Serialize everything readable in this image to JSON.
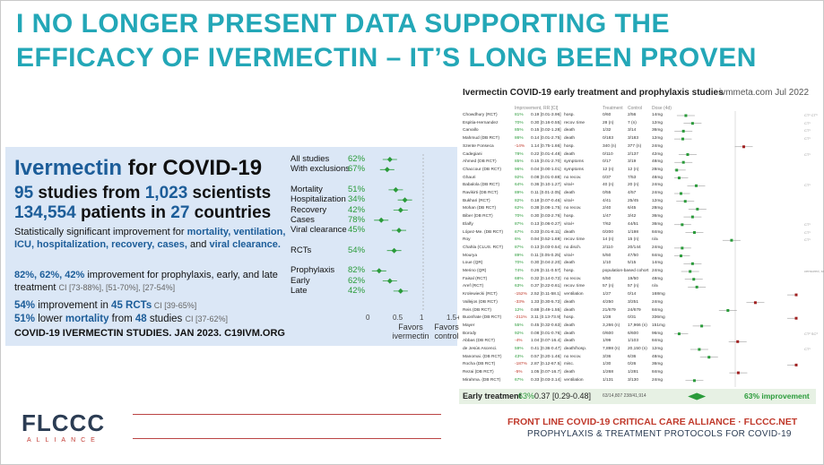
{
  "title": {
    "line1": "I NO LONGER PRESENT DATA SUPPORTING THE",
    "line2": "EFFICACY OF IVERMECTIN – IT’S LONG BEEN PROVEN"
  },
  "left": {
    "h1_a": "Ivermectin",
    "h1_b": " for COVID-19",
    "h2_a": "95",
    "h2_b": " studies from ",
    "h2_c": "1,023",
    "h2_d": " scientists",
    "h3_a": "134,554",
    "h3_b": " patients in ",
    "h3_c": "27",
    "h3_d": " countries",
    "sig_text": "Statistically significant improvement for",
    "sig_bold": "mortality, ventilation, ICU, hospitalization, recovery, cases,",
    "sig_and": " and ",
    "sig_end": "viral clearance.",
    "imp_pcts": "82%, 62%, 42%",
    "imp_text": " improvement for prophylaxis, early, and late treatment ",
    "imp_ci": "CI [73-88%], [51-70%], [27-54%]",
    "rct_a": "54%",
    "rct_b": " improvement in ",
    "rct_c": "45 RCTs",
    "rct_ci": " CI [39-65%]",
    "mort_a": "51%",
    "mort_b": " lower ",
    "mort_c": "mortality",
    "mort_d": " from ",
    "mort_e": "48",
    "mort_f": " studies ",
    "mort_ci": "CI [37-62%]",
    "note": "COVID-19 IVERMECTIN STUDIES. JAN 2023. C19IVM.ORG"
  },
  "mini": {
    "rows": [
      {
        "label": "All studies",
        "pct": "62%",
        "v": 0.38
      },
      {
        "label": "With exclusions",
        "pct": "67%",
        "v": 0.33
      },
      {
        "label": "",
        "pct": "",
        "v": null
      },
      {
        "label": "Mortality",
        "pct": "51%",
        "v": 0.49
      },
      {
        "label": "Hospitalization",
        "pct": "34%",
        "v": 0.66
      },
      {
        "label": "Recovery",
        "pct": "42%",
        "v": 0.58
      },
      {
        "label": "Cases",
        "pct": "78%",
        "v": 0.22
      },
      {
        "label": "Viral clearance",
        "pct": "45%",
        "v": 0.55
      },
      {
        "label": "",
        "pct": "",
        "v": null
      },
      {
        "label": "RCTs",
        "pct": "54%",
        "v": 0.46
      },
      {
        "label": "",
        "pct": "",
        "v": null
      },
      {
        "label": "Prophylaxis",
        "pct": "82%",
        "v": 0.18
      },
      {
        "label": "Early",
        "pct": "62%",
        "v": 0.38
      },
      {
        "label": "Late",
        "pct": "42%",
        "v": 0.58
      }
    ],
    "ticks": [
      "0",
      "0.5",
      "1",
      "1.5+"
    ],
    "fav_a": "Favors ivermectin",
    "fav_b": "Favors control"
  },
  "right": {
    "title": "Ivermectin COVID-19 early treatment and prophylaxis studies",
    "site": "ivmmeta.com Jul 2022",
    "hdr_imp": "Improvement, RR [CI]",
    "hdr_tr": "Treatment",
    "hdr_ctl": "Control",
    "hdr_dose": "Dose (4d)",
    "rows": [
      [
        "Chowdhury (RCT)",
        "81%",
        "0.19 [0.01-3.96]",
        "hosp.",
        "0/60",
        "2/56",
        "14mg",
        "CT¹ CT³"
      ],
      [
        "Espitia-Hernandez",
        "70%",
        "0.30 [0.16-0.55]",
        "recov. time",
        "28 (n)",
        "7 (n)",
        "12mg",
        "CT¹"
      ],
      [
        "Carvallo",
        "85%",
        "0.15 [0.02-1.28]",
        "death",
        "1/32",
        "3/14",
        "36mg",
        "CT¹"
      ],
      [
        "Mahmud (DB RCT)",
        "86%",
        "0.14 [0.01-2.75]",
        "death",
        "0/183",
        "3/183",
        "12mg",
        "CT¹"
      ],
      [
        "Szente Fonseca",
        "-14%",
        "1.14 [0.75-1.66]",
        "hosp.",
        "340 (n)",
        "377 (n)",
        "24mg",
        ""
      ],
      [
        "Cadegiani",
        "78%",
        "0.22 [0.01-4.48]",
        "death",
        "0/110",
        "2/137",
        "42mg",
        "CT¹"
      ],
      [
        "Ahmed (DB RCT)",
        "85%",
        "0.15 [0.01-2.70]",
        "symptoms",
        "0/17",
        "3/19",
        "48mg",
        ""
      ],
      [
        "Chaccour (DB RCT)",
        "96%",
        "0.04 [0.00-1.01]",
        "symptoms",
        "12 (n)",
        "12 (n)",
        "28mg",
        ""
      ],
      [
        "Ghauri",
        "92%",
        "0.08 [0.01-0.88]",
        "no recov.",
        "0/37",
        "7/53",
        "48mg",
        ""
      ],
      [
        "Babalola (DB RCT)",
        "64%",
        "0.36 [0.10-1.27]",
        "viral+",
        "40 (n)",
        "20 (n)",
        "24mg",
        "CT¹"
      ],
      [
        "Ravikirti (DB RCT)",
        "89%",
        "0.11 [0.01-2.05]",
        "death",
        "0/55",
        "4/57",
        "24mg",
        ""
      ],
      [
        "Bukhari (RCT)",
        "82%",
        "0.18 [0.07-0.46]",
        "viral+",
        "4/41",
        "25/45",
        "12mg",
        ""
      ],
      [
        "Mohan (DB RCT)",
        "62%",
        "0.38 [0.08-1.75]",
        "no recov.",
        "2/40",
        "6/45",
        "28mg",
        ""
      ],
      [
        "Biber (DB RCT)",
        "70%",
        "0.30 [0.03-2.76]",
        "hosp.",
        "1/47",
        "3/42",
        "36mg",
        ""
      ],
      [
        "Elalfy",
        "87%",
        "0.13 [0.06-0.27]",
        "viral+",
        "7/62",
        "44/51",
        "36mg",
        "CT¹"
      ],
      [
        "López-Me. (DB RCT)",
        "67%",
        "0.33 [0.01-8.11]",
        "death",
        "0/200",
        "1/198",
        "84mg",
        "CT¹"
      ],
      [
        "Roy",
        "6%",
        "0.94 [0.52-1.69]",
        "recov. time",
        "14 (n)",
        "15 (n)",
        "n/a",
        "CT¹"
      ],
      [
        "Chahla (CLUS. RCT)",
        "87%",
        "0.13 [0.03-0.54]",
        "no disch.",
        "2/110",
        "20/144",
        "24mg",
        ""
      ],
      [
        "Mourya",
        "89%",
        "0.11 [0.05-0.25]",
        "viral+",
        "5/50",
        "47/50",
        "84mg",
        ""
      ],
      [
        "Loue (QR)",
        "70%",
        "0.30 [0.04-2.20]",
        "death",
        "1/10",
        "5/15",
        "14mg",
        ""
      ],
      [
        "Merino (QR)",
        "74%",
        "0.26 [0.11-0.57]",
        "hosp.",
        "population-based cohort",
        "",
        "24mg",
        "censored, see notes CS²"
      ],
      [
        "Faisal (RCT)",
        "68%",
        "0.32 [0.14-0.72]",
        "no recov.",
        "6/50",
        "19/50",
        "48mg",
        ""
      ],
      [
        "Aref (RCT)",
        "63%",
        "0.37 [0.22-0.61]",
        "recov. time",
        "57 (n)",
        "57 (n)",
        "n/a",
        ""
      ],
      [
        "Krolewiecki (RCT)",
        "-152%",
        "2.52 [0.11-58.1]",
        "ventilation",
        "1/27",
        "0/14",
        "168mg",
        ""
      ],
      [
        "Vallejos (DB RCT)",
        "-33%",
        "1.33 [0.30-5.72]",
        "death",
        "4/250",
        "3/251",
        "24mg",
        ""
      ],
      [
        "Reis (DB RCT)",
        "12%",
        "0.88 [0.49-1.55]",
        "death",
        "21/679",
        "24/679",
        "84mg",
        ""
      ],
      [
        "Buonfrate (DB RCT)",
        "-211%",
        "3.11 [0.13-73.9]",
        "hosp.",
        "1/28",
        "0/31",
        "336mg",
        ""
      ],
      [
        "Mayer",
        "55%",
        "0.45 [0.32-0.63]",
        "death",
        "3,266 (n)",
        "17,966 (n)",
        "151mg",
        ""
      ],
      [
        "Borody",
        "92%",
        "0.08 [0.01-0.76]",
        "death",
        "0/600",
        "6/600",
        "96mg",
        "CT² SC³"
      ],
      [
        "Abbas (DB RCT)",
        "-4%",
        "1.04 [0.07-16.4]",
        "death",
        "1/99",
        "1/103",
        "84mg",
        ""
      ],
      [
        "de Jesús Ascenci.",
        "59%",
        "0.41 [0.36-0.47]",
        "death/hosp.",
        "7,898 (n)",
        "20,150 (n)",
        "12mg",
        "CT¹"
      ],
      [
        "Manomai. (DB RCT)",
        "43%",
        "0.57 [0.20-1.46]",
        "no recov.",
        "3/36",
        "6/36",
        "48mg",
        ""
      ],
      [
        "Rocha (DB RCT)",
        "-187%",
        "2.87 [0.12-67.5]",
        "misc.",
        "1/30",
        "0/26",
        "36mg",
        ""
      ],
      [
        "Rezai (DB RCT)",
        "-5%",
        "1.05 [0.07-16.7]",
        "death",
        "1/268",
        "1/281",
        "84mg",
        ""
      ],
      [
        "Mirahma. (DB RCT)",
        "67%",
        "0.33 [0.03-3.14]",
        "ventilation",
        "1/131",
        "3/130",
        "24mg",
        ""
      ]
    ],
    "summary_label": "Early treatment",
    "summary_pct": "63%",
    "summary_ci": "0.37 [0.29-0.48]",
    "summary_tc": "63/14,807   238/41,914",
    "summary_imp": "63% improvement"
  },
  "footer": {
    "logo": "FLCCC",
    "logo_sub": "ALLIANCE",
    "line1": "FRONT LINE COVID-19 CRITICAL CARE ALLIANCE · FLCCC.NET",
    "line2": "PROPHYLAXIS & TREATMENT PROTOCOLS FOR COVID-19"
  },
  "colors": {
    "teal": "#23a7b7",
    "navy": "#1c5d99",
    "green": "#2a9b3a",
    "red": "#c0392b"
  }
}
